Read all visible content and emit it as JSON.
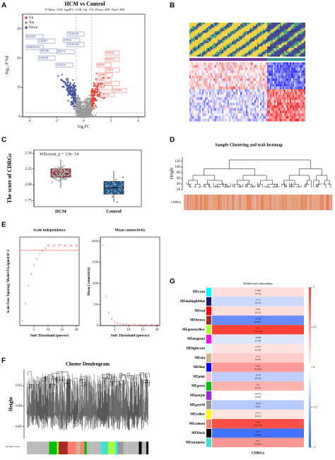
{
  "panels": {
    "A": {
      "label": "A",
      "title": "HCM vs Control",
      "subtitle": "P Value: 0.05; log2FC: 0.58; Up: 311; Down: 489; Total: 800",
      "log2fc_threshold": 0.58,
      "p_threshold": 0.05,
      "legend": [
        "Up",
        "Not",
        "Down"
      ],
      "legend_colors": [
        "#e8392b",
        "#999999",
        "#3a4a9a"
      ],
      "x_label": "log₂FC",
      "y_label": "-log₁₀ P Val",
      "xlim": [
        -4.5,
        4.5
      ],
      "xticks": [
        -4,
        -2,
        0,
        2,
        4
      ],
      "ylim": [
        0,
        35
      ],
      "yticks": [
        0,
        10,
        20,
        30
      ],
      "down_genes": [
        "RASD1",
        "CEBPC",
        "TUBA3E",
        "ZFP36",
        "TUBA3D",
        "SERPINA3",
        "MYH6",
        "MT1X",
        "S100A8",
        "S100A9"
      ],
      "up_genes": [
        "PRDX1",
        "SMOC2",
        "FRZB",
        "ASPN",
        "SFRP4",
        "NPPA",
        "OGN",
        "HBB",
        "CENPK",
        "APOA1"
      ]
    },
    "B": {
      "label": "B"
    },
    "C": {
      "label": "C",
      "annotation": "Wilcoxon, p = 3.9e−14",
      "y_label": "The score of CDRGs",
      "categories": [
        "HCM",
        "Control"
      ],
      "colors": [
        "#c0303a",
        "#1f5a96"
      ],
      "ylim": [
        1.65,
        2.55
      ],
      "yticks": [
        1.75,
        {
          "value": 2,
          "label": "2.00"
        },
        2.25,
        {
          "value": 2.5,
          "label": "2.50"
        }
      ],
      "boxes": [
        {
          "low": 1.95,
          "q1": 2.12,
          "median": 2.17,
          "q3": 2.25,
          "high": 2.4
        },
        {
          "low": 1.72,
          "q1": 1.85,
          "median": 1.95,
          "q3": 2.05,
          "high": 2.22
        }
      ]
    },
    "D": {
      "label": "D",
      "title": "Sample Clustering and trait heatmap",
      "y_label": "Height",
      "trait": "CDRGs",
      "ylim": [
        20,
        135
      ],
      "yticks": [
        20,
        40,
        60,
        80,
        100,
        120
      ]
    },
    "E": {
      "label": "E",
      "left_title": "Scale independence",
      "right_title": "Mean connectivity",
      "x_label": "Soft Threshold (power)",
      "left_y_label": "Scale Free Topology Model Fit,signed R^2",
      "right_y_label": "Mean Connectivity",
      "powers": [
        1,
        2,
        3,
        4,
        5,
        6,
        7,
        8,
        9,
        10,
        12,
        14,
        16,
        18,
        20
      ],
      "r2": [
        0.05,
        0.25,
        0.45,
        0.58,
        0.68,
        0.75,
        0.8,
        0.84,
        0.87,
        0.9,
        0.9,
        0.91,
        0.9,
        0.9,
        0.9
      ],
      "connectivity": [
        1900,
        700,
        300,
        150,
        80,
        50,
        30,
        20,
        15,
        10,
        6,
        4,
        3,
        2,
        2
      ],
      "cutoff": 0.85,
      "xlim": [
        0,
        21
      ],
      "xticks": [
        5,
        10,
        15,
        20
      ],
      "left_ylim": [
        0,
        1
      ],
      "right_ylim": [
        0,
        2100
      ],
      "right_yticks": [
        0,
        500,
        1000,
        1500,
        2000
      ]
    },
    "F": {
      "label": "F",
      "title": "Cluster Dendrogram",
      "y_label": "Height",
      "colors_label": "Module colors",
      "ylim": [
        0.82,
        0.99
      ],
      "yticks": [
        0.85,
        {
          "value": 0.9,
          "label": "0.90"
        },
        0.95
      ]
    },
    "G": {
      "label": "G",
      "title": "Module-trait relationships",
      "x_label": "CDRGs",
      "modules": [
        "MEcyan",
        "MEmidnightblue",
        "MEred",
        "MEbrown",
        "MEgreenyellow",
        "MEmagenta",
        "MElightcyan",
        "MEtan",
        "MEblue",
        "MEpink",
        "MEgreen",
        "MEpurple",
        "MEgrey60",
        "MEyellow",
        "MEsalmon",
        "MEblack",
        "MEturquoise"
      ],
      "module_colors": [
        "#00ffff",
        "#191970",
        "#ff0000",
        "#a52a2a",
        "#adff2f",
        "#ff00ff",
        "#e0ffff",
        "#d2b48c",
        "#0000ff",
        "#ffc0cb",
        "#00c000",
        "#a020f0",
        "#999999",
        "#ffff00",
        "#fa8072",
        "#000000",
        "#40e0d0"
      ],
      "values": [
        0.088,
        -0.13,
        0.09,
        -0.38,
        0.5,
        -0.086,
        0.075,
        0.13,
        0.26,
        -0.16,
        0.2,
        -0.0072,
        -0.18,
        0.072,
        0.46,
        -0.47,
        0.27
      ],
      "p_labels": [
        "(0.53)",
        "(0.35)",
        "(0.52)",
        "(0.005)",
        "(1.4e-04)",
        "(0.54)",
        "(0.59)",
        "(0.34)",
        "(0.062)",
        "(0.24)",
        "(0.15)",
        "(0.96)",
        "(0.2)",
        "(0.61)",
        "(4.9e-04)",
        "(4e-04)",
        "(0.052)"
      ],
      "scale_ticks": [
        1,
        0.5,
        0,
        -0.5,
        -1
      ]
    }
  }
}
